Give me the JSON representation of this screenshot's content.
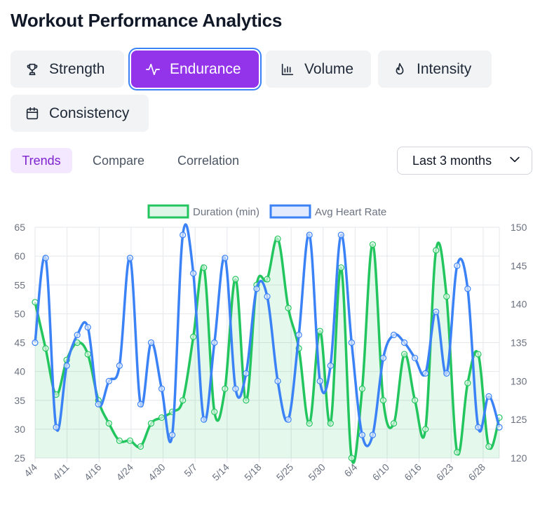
{
  "page": {
    "title": "Workout Performance Analytics"
  },
  "metrics": [
    {
      "label": "Strength",
      "icon": "trophy-icon",
      "active": false
    },
    {
      "label": "Endurance",
      "icon": "activity-icon",
      "active": true
    },
    {
      "label": "Volume",
      "icon": "bar-chart-icon",
      "active": false
    },
    {
      "label": "Intensity",
      "icon": "flame-icon",
      "active": false
    },
    {
      "label": "Consistency",
      "icon": "calendar-icon",
      "active": false
    }
  ],
  "views": [
    {
      "label": "Trends",
      "active": true
    },
    {
      "label": "Compare",
      "active": false
    },
    {
      "label": "Correlation",
      "active": false
    }
  ],
  "range": {
    "selected": "Last 3 months"
  },
  "colors": {
    "accent": "#9333ea",
    "duration": "#22c55e",
    "heart_rate": "#3b82f6"
  },
  "chart_data": {
    "type": "line",
    "legend_position": "top",
    "grid": true,
    "x_tick_labels": [
      "4/4",
      "4/11",
      "4/16",
      "4/24",
      "4/30",
      "5/7",
      "5/14",
      "5/18",
      "5/25",
      "5/30",
      "6/4",
      "6/10",
      "6/16",
      "6/23",
      "6/28"
    ],
    "y_left": {
      "min": 25,
      "max": 65,
      "ticks": [
        25,
        30,
        35,
        40,
        45,
        50,
        55,
        60,
        65
      ]
    },
    "y_right": {
      "min": 120,
      "max": 150,
      "ticks": [
        120,
        125,
        130,
        135,
        140,
        145,
        150
      ]
    },
    "series": [
      {
        "name": "Duration (min)",
        "axis": "left",
        "fill": true,
        "values": [
          52,
          44,
          36,
          42,
          45,
          43,
          35,
          31,
          28,
          28,
          27,
          31,
          32,
          33,
          35,
          46,
          58,
          33,
          37,
          56,
          35,
          55,
          56,
          63,
          51,
          44,
          31,
          47,
          31,
          58,
          25,
          37,
          62,
          35,
          31,
          43,
          35,
          30,
          61,
          53,
          26,
          38,
          43,
          27,
          32
        ]
      },
      {
        "name": "Avg Heart Rate",
        "axis": "right",
        "fill": false,
        "values": [
          135,
          146,
          124,
          132,
          136,
          137,
          127,
          130,
          132,
          146,
          127,
          135,
          129,
          123,
          149,
          144,
          125,
          135,
          146,
          129,
          131,
          142,
          141,
          130,
          125,
          136,
          149,
          130,
          132,
          149,
          135,
          123,
          123,
          133,
          136,
          135,
          133,
          131,
          139,
          131,
          145,
          142,
          124,
          128,
          124
        ]
      }
    ]
  }
}
